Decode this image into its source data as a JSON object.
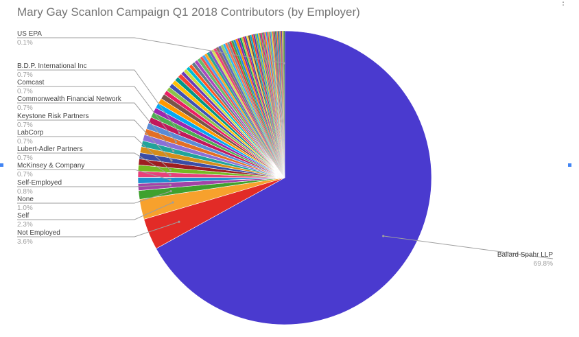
{
  "header": {
    "title": "Mary Gay Scanlon Campaign Q1 2018 Contributors (by Employer)",
    "menu_icon": "more-vert-icon"
  },
  "colors": {
    "accent": "#4285f4",
    "leader_line": "#9e9e9e",
    "palette": [
      "#4a3acf",
      "#e22b27",
      "#f7a12d",
      "#3fa12e",
      "#a244a7",
      "#1f90d0",
      "#e8407a",
      "#74ba22",
      "#9e1e21",
      "#3a4da6",
      "#d58d19",
      "#20a49a",
      "#8a6fd8",
      "#e36f24",
      "#5a8bd6",
      "#c2185b"
    ]
  },
  "chart_data": {
    "type": "pie",
    "title": "Mary Gay Scanlon Campaign Q1 2018 Contributors (by Employer)",
    "legend": "none",
    "unit": "%",
    "slices": [
      {
        "label": "Ballard Spahr LLP",
        "pct_text": "69.8%",
        "value": 69.8,
        "color": "#4a3acf",
        "labeled": true
      },
      {
        "label": "Not Employed",
        "pct_text": "3.6%",
        "value": 3.6,
        "color": "#e22b27",
        "labeled": true
      },
      {
        "label": "Self",
        "pct_text": "2.3%",
        "value": 2.3,
        "color": "#f7a12d",
        "labeled": true
      },
      {
        "label": "None",
        "pct_text": "1.0%",
        "value": 1.0,
        "color": "#3fa12e",
        "labeled": true
      },
      {
        "label": "Self-Employed",
        "pct_text": "0.8%",
        "value": 0.8,
        "color": "#a244a7",
        "labeled": true
      },
      {
        "label": "McKinsey & Company",
        "pct_text": "0.7%",
        "value": 0.7,
        "color": "#1f90d0",
        "labeled": true
      },
      {
        "label": "Lubert-Adler Partners",
        "pct_text": "0.7%",
        "value": 0.7,
        "color": "#e8407a",
        "labeled": true
      },
      {
        "label": "LabCorp",
        "pct_text": "0.7%",
        "value": 0.7,
        "color": "#74ba22",
        "labeled": true
      },
      {
        "label": "",
        "pct_text": "",
        "value": 0.7,
        "color": "#9e1e21",
        "labeled": false
      },
      {
        "label": "Keystone Risk Partners",
        "pct_text": "0.7%",
        "value": 0.7,
        "color": "#3a4da6",
        "labeled": true
      },
      {
        "label": "",
        "pct_text": "",
        "value": 0.7,
        "color": "#d58d19",
        "labeled": false
      },
      {
        "label": "Commonwealth Financial Network",
        "pct_text": "0.7%",
        "value": 0.7,
        "color": "#20a49a",
        "labeled": true
      },
      {
        "label": "",
        "pct_text": "",
        "value": 0.7,
        "color": "#8a6fd8",
        "labeled": false
      },
      {
        "label": "Comcast",
        "pct_text": "0.7%",
        "value": 0.7,
        "color": "#e36f24",
        "labeled": true
      },
      {
        "label": "",
        "pct_text": "",
        "value": 0.7,
        "color": "#5a8bd6",
        "labeled": false
      },
      {
        "label": "B.D.P. International Inc",
        "pct_text": "0.7%",
        "value": 0.7,
        "color": "#c2185b",
        "labeled": true
      },
      {
        "label": "",
        "pct_text": "",
        "value": 0.6,
        "color": "#4caf50",
        "labeled": false
      },
      {
        "label": "",
        "pct_text": "",
        "value": 0.6,
        "color": "#9c27b0",
        "labeled": false
      },
      {
        "label": "",
        "pct_text": "",
        "value": 0.6,
        "color": "#03a9f4",
        "labeled": false
      },
      {
        "label": "",
        "pct_text": "",
        "value": 0.6,
        "color": "#ff9800",
        "labeled": false
      },
      {
        "label": "",
        "pct_text": "",
        "value": 0.6,
        "color": "#795548",
        "labeled": false
      },
      {
        "label": "",
        "pct_text": "",
        "value": 0.5,
        "color": "#e91e63",
        "labeled": false
      },
      {
        "label": "",
        "pct_text": "",
        "value": 0.5,
        "color": "#8bc34a",
        "labeled": false
      },
      {
        "label": "",
        "pct_text": "",
        "value": 0.5,
        "color": "#3f51b5",
        "labeled": false
      },
      {
        "label": "",
        "pct_text": "",
        "value": 0.5,
        "color": "#ffc107",
        "labeled": false
      },
      {
        "label": "",
        "pct_text": "",
        "value": 0.5,
        "color": "#009688",
        "labeled": false
      },
      {
        "label": "",
        "pct_text": "",
        "value": 0.5,
        "color": "#f44336",
        "labeled": false
      },
      {
        "label": "",
        "pct_text": "",
        "value": 0.4,
        "color": "#673ab7",
        "labeled": false
      },
      {
        "label": "",
        "pct_text": "",
        "value": 0.4,
        "color": "#cddc39",
        "labeled": false
      },
      {
        "label": "",
        "pct_text": "",
        "value": 0.4,
        "color": "#00bcd4",
        "labeled": false
      },
      {
        "label": "",
        "pct_text": "",
        "value": 0.4,
        "color": "#ff5722",
        "labeled": false
      },
      {
        "label": "",
        "pct_text": "",
        "value": 0.4,
        "color": "#607d8b",
        "labeled": false
      },
      {
        "label": "",
        "pct_text": "",
        "value": 0.4,
        "color": "#ab47bc",
        "labeled": false
      },
      {
        "label": "",
        "pct_text": "",
        "value": 0.4,
        "color": "#66bb6a",
        "labeled": false
      },
      {
        "label": "",
        "pct_text": "",
        "value": 0.3,
        "color": "#ef5350",
        "labeled": false
      },
      {
        "label": "",
        "pct_text": "",
        "value": 0.3,
        "color": "#42a5f5",
        "labeled": false
      },
      {
        "label": "",
        "pct_text": "",
        "value": 0.3,
        "color": "#ffa726",
        "labeled": false
      },
      {
        "label": "",
        "pct_text": "",
        "value": 0.3,
        "color": "#26a69a",
        "labeled": false
      },
      {
        "label": "",
        "pct_text": "",
        "value": 0.3,
        "color": "#7e57c2",
        "labeled": false
      },
      {
        "label": "",
        "pct_text": "",
        "value": 0.3,
        "color": "#d4e157",
        "labeled": false
      },
      {
        "label": "",
        "pct_text": "",
        "value": 0.3,
        "color": "#ec407a",
        "labeled": false
      },
      {
        "label": "",
        "pct_text": "",
        "value": 0.3,
        "color": "#8d6e63",
        "labeled": false
      },
      {
        "label": "",
        "pct_text": "",
        "value": 0.3,
        "color": "#5c6bc0",
        "labeled": false
      },
      {
        "label": "",
        "pct_text": "",
        "value": 0.3,
        "color": "#9ccc65",
        "labeled": false
      },
      {
        "label": "",
        "pct_text": "",
        "value": 0.25,
        "color": "#29b6f6",
        "labeled": false
      },
      {
        "label": "",
        "pct_text": "",
        "value": 0.25,
        "color": "#ff7043",
        "labeled": false
      },
      {
        "label": "",
        "pct_text": "",
        "value": 0.25,
        "color": "#78909c",
        "labeled": false
      },
      {
        "label": "",
        "pct_text": "",
        "value": 0.25,
        "color": "#e53935",
        "labeled": false
      },
      {
        "label": "",
        "pct_text": "",
        "value": 0.25,
        "color": "#43a047",
        "labeled": false
      },
      {
        "label": "",
        "pct_text": "",
        "value": 0.25,
        "color": "#1e88e5",
        "labeled": false
      },
      {
        "label": "",
        "pct_text": "",
        "value": 0.25,
        "color": "#fb8c00",
        "labeled": false
      },
      {
        "label": "",
        "pct_text": "",
        "value": 0.25,
        "color": "#8e24aa",
        "labeled": false
      },
      {
        "label": "",
        "pct_text": "",
        "value": 0.2,
        "color": "#00897b",
        "labeled": false
      },
      {
        "label": "",
        "pct_text": "",
        "value": 0.2,
        "color": "#c0ca33",
        "labeled": false
      },
      {
        "label": "",
        "pct_text": "",
        "value": 0.2,
        "color": "#d81b60",
        "labeled": false
      },
      {
        "label": "",
        "pct_text": "",
        "value": 0.2,
        "color": "#3949ab",
        "labeled": false
      },
      {
        "label": "",
        "pct_text": "",
        "value": 0.2,
        "color": "#fdd835",
        "labeled": false
      },
      {
        "label": "",
        "pct_text": "",
        "value": 0.2,
        "color": "#6d4c41",
        "labeled": false
      },
      {
        "label": "",
        "pct_text": "",
        "value": 0.2,
        "color": "#00acc1",
        "labeled": false
      },
      {
        "label": "",
        "pct_text": "",
        "value": 0.2,
        "color": "#f4511e",
        "labeled": false
      },
      {
        "label": "",
        "pct_text": "",
        "value": 0.2,
        "color": "#5e35b1",
        "labeled": false
      },
      {
        "label": "",
        "pct_text": "",
        "value": 0.2,
        "color": "#7cb342",
        "labeled": false
      },
      {
        "label": "",
        "pct_text": "",
        "value": 0.15,
        "color": "#039be5",
        "labeled": false
      },
      {
        "label": "",
        "pct_text": "",
        "value": 0.15,
        "color": "#ffb300",
        "labeled": false
      },
      {
        "label": "",
        "pct_text": "",
        "value": 0.15,
        "color": "#546e7a",
        "labeled": false
      },
      {
        "label": "",
        "pct_text": "",
        "value": 0.15,
        "color": "#e91e63",
        "labeled": false
      },
      {
        "label": "",
        "pct_text": "",
        "value": 0.15,
        "color": "#4caf50",
        "labeled": false
      },
      {
        "label": "",
        "pct_text": "",
        "value": 0.15,
        "color": "#9c27b0",
        "labeled": false
      },
      {
        "label": "",
        "pct_text": "",
        "value": 0.15,
        "color": "#ff9800",
        "labeled": false
      },
      {
        "label": "",
        "pct_text": "",
        "value": 0.15,
        "color": "#2196f3",
        "labeled": false
      },
      {
        "label": "",
        "pct_text": "",
        "value": 0.15,
        "color": "#f44336",
        "labeled": false
      },
      {
        "label": "",
        "pct_text": "",
        "value": 0.15,
        "color": "#8bc34a",
        "labeled": false
      },
      {
        "label": "",
        "pct_text": "",
        "value": 0.1,
        "color": "#673ab7",
        "labeled": false
      },
      {
        "label": "",
        "pct_text": "",
        "value": 0.1,
        "color": "#00bcd4",
        "labeled": false
      },
      {
        "label": "",
        "pct_text": "",
        "value": 0.1,
        "color": "#ffc107",
        "labeled": false
      },
      {
        "label": "",
        "pct_text": "",
        "value": 0.1,
        "color": "#e64a19",
        "labeled": false
      },
      {
        "label": "",
        "pct_text": "",
        "value": 0.1,
        "color": "#455a64",
        "labeled": false
      },
      {
        "label": "",
        "pct_text": "",
        "value": 0.1,
        "color": "#ad1457",
        "labeled": false
      },
      {
        "label": "",
        "pct_text": "",
        "value": 0.1,
        "color": "#2e7d32",
        "labeled": false
      },
      {
        "label": "",
        "pct_text": "",
        "value": 0.1,
        "color": "#1565c0",
        "labeled": false
      },
      {
        "label": "",
        "pct_text": "",
        "value": 0.1,
        "color": "#ef6c00",
        "labeled": false
      },
      {
        "label": "",
        "pct_text": "",
        "value": 0.1,
        "color": "#6a1b9a",
        "labeled": false
      },
      {
        "label": "",
        "pct_text": "",
        "value": 0.1,
        "color": "#00838f",
        "labeled": false
      },
      {
        "label": "",
        "pct_text": "",
        "value": 0.1,
        "color": "#9e9d24",
        "labeled": false
      },
      {
        "label": "",
        "pct_text": "",
        "value": 0.1,
        "color": "#c62828",
        "labeled": false
      },
      {
        "label": "",
        "pct_text": "",
        "value": 0.1,
        "color": "#4527a0",
        "labeled": false
      },
      {
        "label": "",
        "pct_text": "",
        "value": 0.1,
        "color": "#f9a825",
        "labeled": false
      },
      {
        "label": "",
        "pct_text": "",
        "value": 0.1,
        "color": "#558b2f",
        "labeled": false
      },
      {
        "label": "US EPA",
        "pct_text": "0.1%",
        "value": 0.1,
        "color": "#2e7d32",
        "labeled": true
      }
    ]
  }
}
